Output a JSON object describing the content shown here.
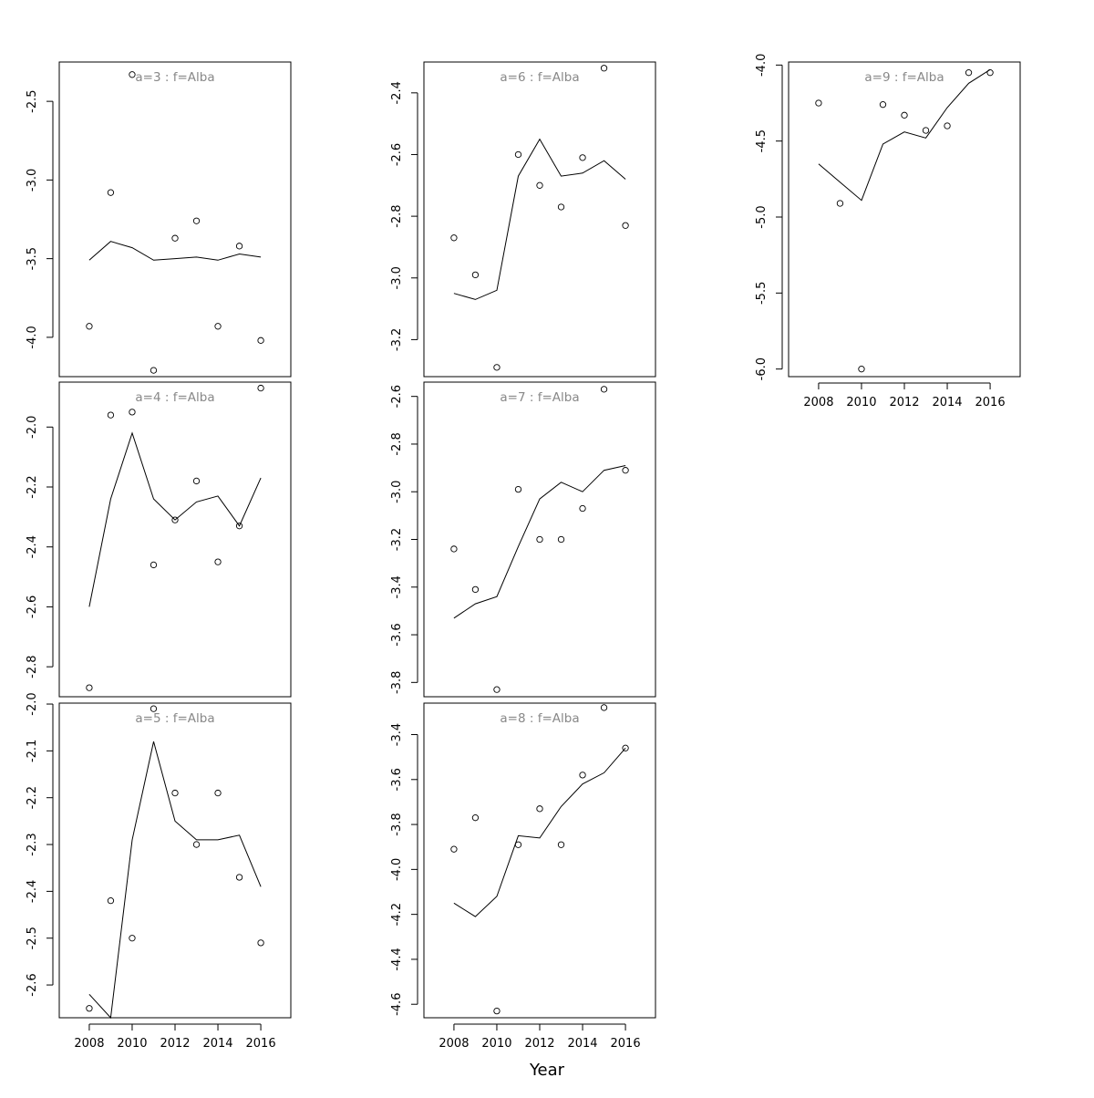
{
  "figure": {
    "xlabel": "Year",
    "xaxis": {
      "min": 2006.6,
      "max": 2017.4,
      "ticks": [
        2008,
        2010,
        2012,
        2014,
        2016
      ]
    },
    "line_color": "#000000",
    "title_color": "#888888"
  },
  "chart_data": [
    {
      "type": "line",
      "title": "a=3 : f=Alba",
      "x": [
        2008,
        2009,
        2010,
        2011,
        2012,
        2013,
        2014,
        2015,
        2016
      ],
      "observed": [
        -3.93,
        -3.08,
        -2.33,
        -4.21,
        -3.37,
        -3.26,
        -3.93,
        -3.42,
        -4.02
      ],
      "fitted": [
        -3.51,
        -3.39,
        -3.43,
        -3.51,
        -3.5,
        -3.49,
        -3.51,
        -3.47,
        -3.49
      ],
      "ylim": [
        -4.25,
        -2.25
      ],
      "yticks": [
        -4.0,
        -3.5,
        -3.0,
        -2.5
      ],
      "show_xaxis": false
    },
    {
      "type": "line",
      "title": "a=4 : f=Alba",
      "x": [
        2008,
        2009,
        2010,
        2011,
        2012,
        2013,
        2014,
        2015,
        2016
      ],
      "observed": [
        -2.87,
        -1.96,
        -1.95,
        -2.46,
        -2.31,
        -2.18,
        -2.45,
        -2.33,
        -1.87
      ],
      "fitted": [
        -2.6,
        -2.24,
        -2.02,
        -2.24,
        -2.31,
        -2.25,
        -2.23,
        -2.33,
        -2.17
      ],
      "ylim": [
        -2.9,
        -1.85
      ],
      "yticks": [
        -2.8,
        -2.6,
        -2.4,
        -2.2,
        -2.0
      ],
      "show_xaxis": false
    },
    {
      "type": "line",
      "title": "a=5 : f=Alba",
      "x": [
        2008,
        2009,
        2010,
        2011,
        2012,
        2013,
        2014,
        2015,
        2016
      ],
      "observed": [
        -2.65,
        -2.42,
        -2.5,
        -2.01,
        -2.19,
        -2.3,
        -2.19,
        -2.37,
        -2.51
      ],
      "fitted": [
        -2.62,
        -2.67,
        -2.29,
        -2.08,
        -2.25,
        -2.29,
        -2.29,
        -2.28,
        -2.39
      ],
      "ylim": [
        -2.67,
        -1.998
      ],
      "yticks": [
        -2.6,
        -2.5,
        -2.4,
        -2.3,
        -2.2,
        -2.1,
        -2.0
      ],
      "show_xaxis": true
    },
    {
      "type": "line",
      "title": "a=6 : f=Alba",
      "x": [
        2008,
        2009,
        2010,
        2011,
        2012,
        2013,
        2014,
        2015,
        2016
      ],
      "observed": [
        -2.87,
        -2.99,
        -3.29,
        -2.6,
        -2.7,
        -2.77,
        -2.61,
        -2.32,
        -2.83
      ],
      "fitted": [
        -3.05,
        -3.07,
        -3.04,
        -2.67,
        -2.55,
        -2.67,
        -2.66,
        -2.62,
        -2.68
      ],
      "ylim": [
        -3.32,
        -2.3
      ],
      "yticks": [
        -3.2,
        -3.0,
        -2.8,
        -2.6,
        -2.4
      ],
      "show_xaxis": false
    },
    {
      "type": "line",
      "title": "a=7 : f=Alba",
      "x": [
        2008,
        2009,
        2010,
        2011,
        2012,
        2013,
        2014,
        2015,
        2016
      ],
      "observed": [
        -3.24,
        -3.41,
        -3.83,
        -2.99,
        -3.2,
        -3.2,
        -3.07,
        -2.57,
        -2.91
      ],
      "fitted": [
        -3.53,
        -3.47,
        -3.44,
        -3.23,
        -3.03,
        -2.96,
        -3.0,
        -2.91,
        -2.89
      ],
      "ylim": [
        -3.86,
        -2.54
      ],
      "yticks": [
        -3.8,
        -3.6,
        -3.4,
        -3.2,
        -3.0,
        -2.8,
        -2.6
      ],
      "show_xaxis": false
    },
    {
      "type": "line",
      "title": "a=8 : f=Alba",
      "x": [
        2008,
        2009,
        2010,
        2011,
        2012,
        2013,
        2014,
        2015,
        2016
      ],
      "observed": [
        -3.91,
        -3.77,
        -4.63,
        -3.89,
        -3.73,
        -3.89,
        -3.58,
        -3.28,
        -3.46
      ],
      "fitted": [
        -4.15,
        -4.21,
        -4.12,
        -3.85,
        -3.86,
        -3.72,
        -3.62,
        -3.57,
        -3.46
      ],
      "ylim": [
        -4.66,
        -3.26
      ],
      "yticks": [
        -4.6,
        -4.4,
        -4.2,
        -4.0,
        -3.8,
        -3.6,
        -3.4
      ],
      "show_xaxis": true
    },
    {
      "type": "line",
      "title": "a=9 : f=Alba",
      "x": [
        2008,
        2009,
        2010,
        2011,
        2012,
        2013,
        2014,
        2015,
        2016
      ],
      "observed": [
        -4.25,
        -4.91,
        -6.0,
        -4.26,
        -4.33,
        -4.43,
        -4.4,
        -4.05,
        -4.05
      ],
      "fitted": [
        -4.65,
        -4.77,
        -4.89,
        -4.52,
        -4.44,
        -4.48,
        -4.28,
        -4.12,
        -4.03
      ],
      "ylim": [
        -6.05,
        -3.98
      ],
      "yticks": [
        -6.0,
        -5.5,
        -5.0,
        -4.5,
        -4.0
      ],
      "show_xaxis": true
    }
  ]
}
